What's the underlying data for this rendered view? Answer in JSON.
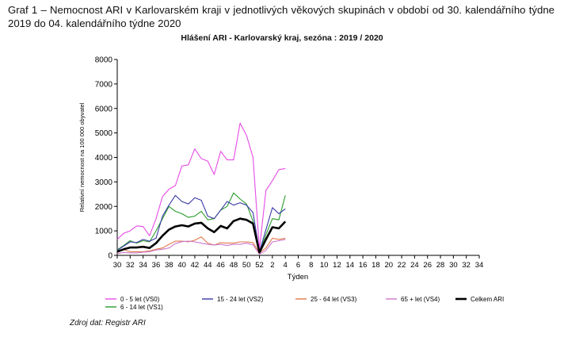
{
  "caption": "Graf 1 – Nemocnost ARI v Karlovarském kraji v jednotlivých věkových skupinách v období od 30. kalendářního týdne 2019 do 04. kalendářního týdne 2020",
  "source": "Zdroj dat: Registr ARI",
  "chart_data": {
    "type": "line",
    "title": "Hlášení ARI   -   Karlovarský kraj, sezóna : 2019 / 2020",
    "xlabel": "Týden",
    "ylabel": "Relativní nemocnost na 100 000 obyvatel",
    "ylim": [
      0,
      8000
    ],
    "yticks": [
      0,
      1000,
      2000,
      3000,
      4000,
      5000,
      6000,
      7000,
      8000
    ],
    "grid": false,
    "legend_position": "bottom",
    "x": [
      "30",
      "31",
      "32",
      "33",
      "34",
      "35",
      "36",
      "37",
      "38",
      "39",
      "40",
      "41",
      "42",
      "43",
      "44",
      "45",
      "46",
      "47",
      "48",
      "49",
      "50",
      "51",
      "52",
      "1",
      "2",
      "3",
      "4"
    ],
    "x_tick_labels": [
      "30",
      "32",
      "34",
      "36",
      "38",
      "40",
      "42",
      "44",
      "46",
      "48",
      "50",
      "52",
      "2",
      "4",
      "6",
      "8",
      "10",
      "12",
      "14",
      "16",
      "18",
      "20",
      "22",
      "24",
      "26",
      "28",
      "30",
      "32",
      "34"
    ],
    "series": [
      {
        "name": "0 - 5 let (VS0)",
        "color": "#e64ce6",
        "values": [
          650,
          900,
          1000,
          1200,
          1180,
          800,
          1500,
          2400,
          2700,
          2850,
          3650,
          3700,
          4350,
          3950,
          3850,
          3300,
          4250,
          3900,
          3900,
          5400,
          4900,
          4000,
          250,
          2650,
          3050,
          3500,
          3550
        ]
      },
      {
        "name": "6 - 14 let (VS1)",
        "color": "#2a9c2a",
        "values": [
          230,
          400,
          600,
          500,
          600,
          550,
          1000,
          1500,
          2000,
          1800,
          1700,
          1550,
          1600,
          1800,
          1450,
          1500,
          1850,
          2000,
          2550,
          2300,
          2100,
          1400,
          150,
          850,
          1500,
          1450,
          2450
        ]
      },
      {
        "name": "15 - 24 let (VS2)",
        "color": "#3a3aa6",
        "values": [
          200,
          380,
          550,
          520,
          650,
          580,
          700,
          1600,
          2050,
          2450,
          2200,
          2100,
          2350,
          2250,
          1600,
          1500,
          1850,
          2200,
          2050,
          2150,
          2050,
          1750,
          150,
          1050,
          1950,
          1700,
          1900
        ]
      },
      {
        "name": "25 - 64 let (VS3)",
        "color": "#e07a4a",
        "values": [
          120,
          230,
          150,
          150,
          150,
          180,
          250,
          300,
          450,
          580,
          580,
          550,
          620,
          750,
          500,
          420,
          520,
          500,
          500,
          550,
          550,
          520,
          100,
          300,
          700,
          650,
          700
        ]
      },
      {
        "name": "65 + let (VS4)",
        "color": "#cc77cc",
        "values": [
          70,
          120,
          100,
          100,
          130,
          150,
          220,
          250,
          300,
          480,
          560,
          580,
          550,
          500,
          450,
          420,
          450,
          400,
          450,
          450,
          500,
          430,
          50,
          200,
          550,
          600,
          650
        ]
      },
      {
        "name": "Celkem ARI",
        "color": "#000000",
        "bold": true,
        "values": [
          150,
          250,
          320,
          320,
          350,
          300,
          500,
          800,
          1050,
          1180,
          1230,
          1180,
          1300,
          1330,
          1100,
          950,
          1200,
          1100,
          1400,
          1500,
          1450,
          1300,
          120,
          650,
          1150,
          1100,
          1380
        ]
      }
    ]
  }
}
